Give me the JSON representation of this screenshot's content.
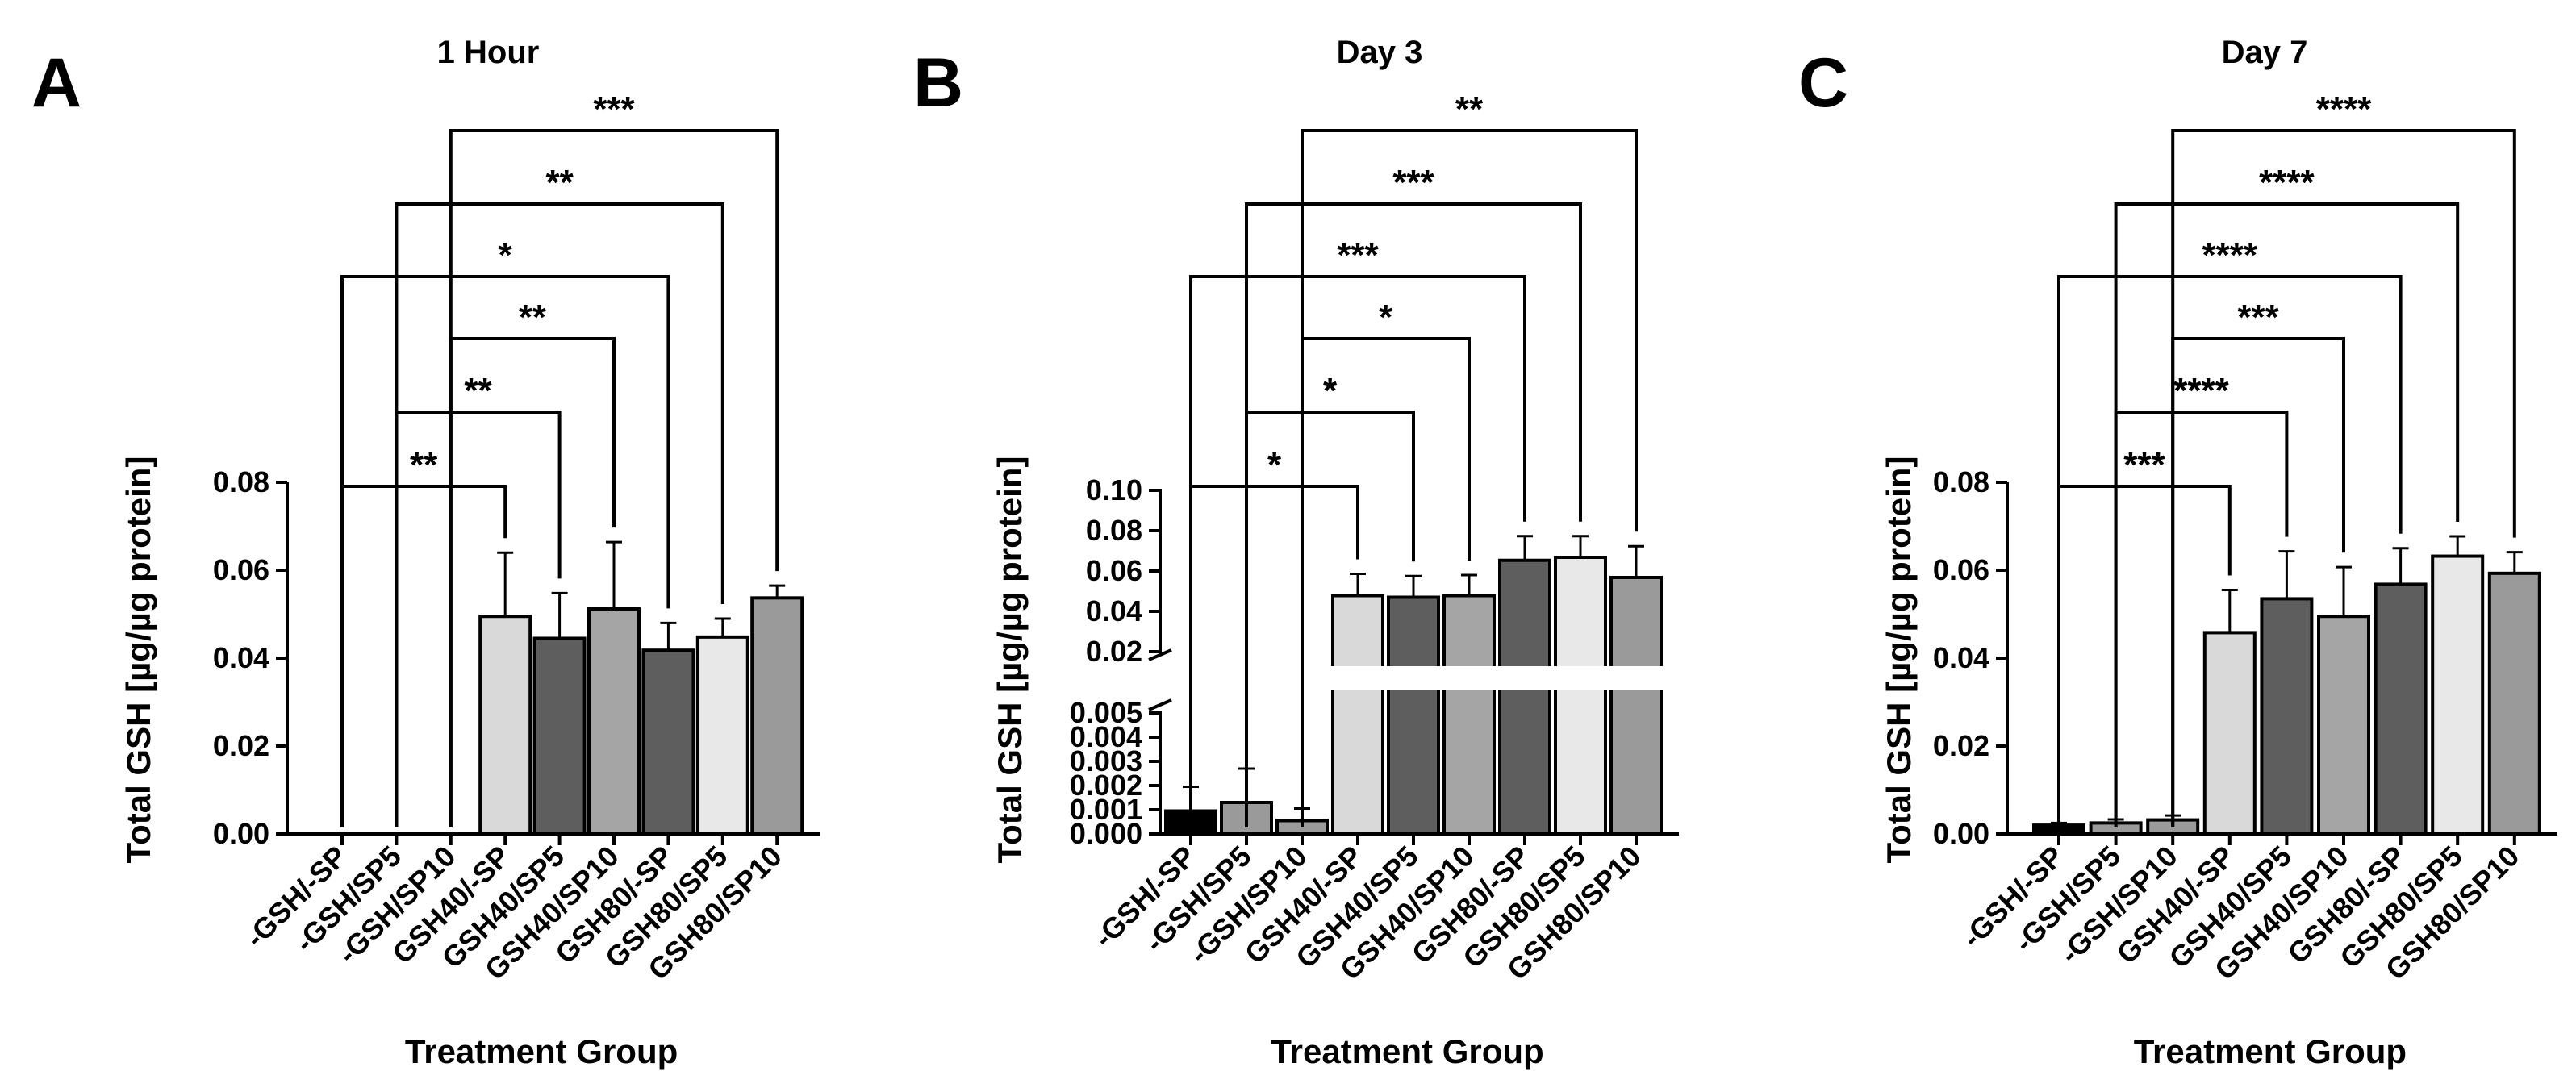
{
  "chart_data": [
    {
      "type": "bar",
      "panel": "A",
      "title": "1 Hour",
      "xlabel": "Treatment Group",
      "ylabel": "Total GSH [µg/µg protein]",
      "ylim": [
        0,
        0.08
      ],
      "yticks": [
        "0.00",
        "0.02",
        "0.04",
        "0.06",
        "0.08"
      ],
      "categories": [
        "-GSH/-SP",
        "-GSH/SP5",
        "-GSH/SP10",
        "GSH40/-SP",
        "GSH40/SP5",
        "GSH40/SP10",
        "GSH80/-SP",
        "GSH80/SP5",
        "GSH80/SP10"
      ],
      "values": [
        0,
        0,
        0,
        0.0495,
        0.0445,
        0.0512,
        0.0418,
        0.0448,
        0.0537
      ],
      "errors": [
        0,
        0,
        0,
        0.0145,
        0.0103,
        0.0152,
        0.0062,
        0.0042,
        0.0028
      ],
      "colors": [
        "#000000",
        "#9a9a9a",
        "#9a9a9a",
        "#d9d9d9",
        "#5e5e5e",
        "#a5a5a5",
        "#5e5e5e",
        "#e8e8e8",
        "#9a9a9a"
      ],
      "comparisons": [
        {
          "from": 0,
          "to": 3,
          "label": "**"
        },
        {
          "from": 1,
          "to": 4,
          "label": "**"
        },
        {
          "from": 2,
          "to": 5,
          "label": "**"
        },
        {
          "from": 0,
          "to": 6,
          "label": "*"
        },
        {
          "from": 1,
          "to": 7,
          "label": "**"
        },
        {
          "from": 2,
          "to": 8,
          "label": "***"
        }
      ]
    },
    {
      "type": "bar",
      "panel": "B",
      "title": "Day 3",
      "xlabel": "Treatment Group",
      "ylabel": "Total GSH [µg/µg protein]",
      "broken_axis": true,
      "lower_ylim": [
        0,
        0.005
      ],
      "upper_ylim": [
        0.02,
        0.1
      ],
      "lower_yticks": [
        "0.000",
        "0.001",
        "0.002",
        "0.003",
        "0.004",
        "0.005"
      ],
      "upper_yticks": [
        "0.02",
        "0.04",
        "0.06",
        "0.08",
        "0.10"
      ],
      "categories": [
        "-GSH/-SP",
        "-GSH/SP5",
        "-GSH/SP10",
        "GSH40/-SP",
        "GSH40/SP5",
        "GSH40/SP10",
        "GSH80/-SP",
        "GSH80/SP5",
        "GSH80/SP10"
      ],
      "values": [
        0.00095,
        0.0013,
        0.00055,
        0.0478,
        0.047,
        0.0478,
        0.0653,
        0.0668,
        0.0568
      ],
      "errors": [
        0.001,
        0.0014,
        0.0005,
        0.0108,
        0.0105,
        0.0102,
        0.012,
        0.0105,
        0.0155
      ],
      "colors": [
        "#000000",
        "#9a9a9a",
        "#9a9a9a",
        "#d9d9d9",
        "#5e5e5e",
        "#a5a5a5",
        "#5e5e5e",
        "#e8e8e8",
        "#9a9a9a"
      ],
      "comparisons": [
        {
          "from": 0,
          "to": 3,
          "label": "*"
        },
        {
          "from": 1,
          "to": 4,
          "label": "*"
        },
        {
          "from": 2,
          "to": 5,
          "label": "*"
        },
        {
          "from": 0,
          "to": 6,
          "label": "***"
        },
        {
          "from": 1,
          "to": 7,
          "label": "***"
        },
        {
          "from": 2,
          "to": 8,
          "label": "**"
        }
      ]
    },
    {
      "type": "bar",
      "panel": "C",
      "title": "Day 7",
      "xlabel": "Treatment Group",
      "ylabel": "Total GSH [µg/µg protein]",
      "ylim": [
        0,
        0.08
      ],
      "yticks": [
        "0.00",
        "0.02",
        "0.04",
        "0.06",
        "0.08"
      ],
      "categories": [
        "-GSH/-SP",
        "-GSH/SP5",
        "-GSH/SP10",
        "GSH40/-SP",
        "GSH40/SP5",
        "GSH40/SP10",
        "GSH80/-SP",
        "GSH80/SP5",
        "GSH80/SP10"
      ],
      "values": [
        0.002,
        0.0025,
        0.0032,
        0.0458,
        0.0535,
        0.0495,
        0.0568,
        0.0632,
        0.0593
      ],
      "errors": [
        0.0005,
        0.0008,
        0.001,
        0.0097,
        0.0108,
        0.0112,
        0.0082,
        0.0045,
        0.0048
      ],
      "colors": [
        "#000000",
        "#9a9a9a",
        "#9a9a9a",
        "#d9d9d9",
        "#5e5e5e",
        "#a5a5a5",
        "#5e5e5e",
        "#e8e8e8",
        "#9a9a9a"
      ],
      "comparisons": [
        {
          "from": 0,
          "to": 3,
          "label": "***"
        },
        {
          "from": 1,
          "to": 4,
          "label": "****"
        },
        {
          "from": 2,
          "to": 5,
          "label": "***"
        },
        {
          "from": 0,
          "to": 6,
          "label": "****"
        },
        {
          "from": 1,
          "to": 7,
          "label": "****"
        },
        {
          "from": 2,
          "to": 8,
          "label": "****"
        }
      ]
    }
  ]
}
